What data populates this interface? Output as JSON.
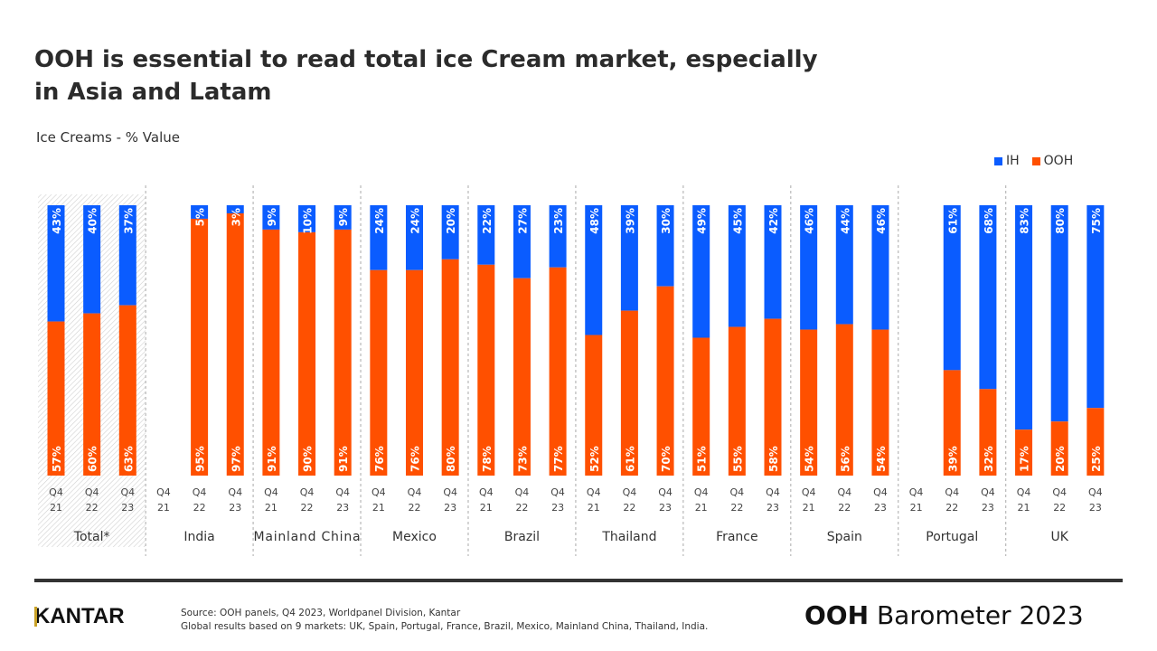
{
  "title": "OOH is essential to read total ice Cream market, especially in Asia and Latam",
  "subtitle": "Ice Creams - % Value",
  "legend": [
    {
      "name": "IH",
      "color": "#0a5cff"
    },
    {
      "name": "OOH",
      "color": "#ff5000"
    }
  ],
  "chart_data": {
    "type": "bar",
    "stacked": true,
    "ylim": [
      0,
      100
    ],
    "series": [
      {
        "name": "IH",
        "color": "#0a5cff"
      },
      {
        "name": "OOH",
        "color": "#ff5000"
      }
    ],
    "groups": [
      {
        "name": "Total*",
        "highlight": true,
        "bars": [
          {
            "period": [
              "Q4",
              "21"
            ],
            "OOH": 57,
            "IH": 43
          },
          {
            "period": [
              "Q4",
              "22"
            ],
            "OOH": 60,
            "IH": 40
          },
          {
            "period": [
              "Q4",
              "23"
            ],
            "OOH": 63,
            "IH": 37
          }
        ]
      },
      {
        "name": "India",
        "bars": [
          {
            "period": [
              "Q4",
              "21"
            ],
            "OOH": null,
            "IH": null
          },
          {
            "period": [
              "Q4",
              "22"
            ],
            "OOH": 95,
            "IH": 5
          },
          {
            "period": [
              "Q4",
              "23"
            ],
            "OOH": 97,
            "IH": 3
          }
        ]
      },
      {
        "name": "Mainland China",
        "bars": [
          {
            "period": [
              "Q4",
              "21"
            ],
            "OOH": 91,
            "IH": 9
          },
          {
            "period": [
              "Q4",
              "22"
            ],
            "OOH": 90,
            "IH": 10
          },
          {
            "period": [
              "Q4",
              "23"
            ],
            "OOH": 91,
            "IH": 9
          }
        ]
      },
      {
        "name": "Mexico",
        "bars": [
          {
            "period": [
              "Q4",
              "21"
            ],
            "OOH": 76,
            "IH": 24
          },
          {
            "period": [
              "Q4",
              "22"
            ],
            "OOH": 76,
            "IH": 24
          },
          {
            "period": [
              "Q4",
              "23"
            ],
            "OOH": 80,
            "IH": 20
          }
        ]
      },
      {
        "name": "Brazil",
        "bars": [
          {
            "period": [
              "Q4",
              "21"
            ],
            "OOH": 78,
            "IH": 22
          },
          {
            "period": [
              "Q4",
              "22"
            ],
            "OOH": 73,
            "IH": 27
          },
          {
            "period": [
              "Q4",
              "23"
            ],
            "OOH": 77,
            "IH": 23
          }
        ]
      },
      {
        "name": "Thailand",
        "bars": [
          {
            "period": [
              "Q4",
              "21"
            ],
            "OOH": 52,
            "IH": 48
          },
          {
            "period": [
              "Q4",
              "22"
            ],
            "OOH": 61,
            "IH": 39
          },
          {
            "period": [
              "Q4",
              "23"
            ],
            "OOH": 70,
            "IH": 30
          }
        ]
      },
      {
        "name": "France",
        "bars": [
          {
            "period": [
              "Q4",
              "21"
            ],
            "OOH": 51,
            "IH": 49
          },
          {
            "period": [
              "Q4",
              "22"
            ],
            "OOH": 55,
            "IH": 45
          },
          {
            "period": [
              "Q4",
              "23"
            ],
            "OOH": 58,
            "IH": 42
          }
        ]
      },
      {
        "name": "Spain",
        "bars": [
          {
            "period": [
              "Q4",
              "21"
            ],
            "OOH": 54,
            "IH": 46
          },
          {
            "period": [
              "Q4",
              "22"
            ],
            "OOH": 56,
            "IH": 44
          },
          {
            "period": [
              "Q4",
              "23"
            ],
            "OOH": 54,
            "IH": 46
          }
        ]
      },
      {
        "name": "Portugal",
        "bars": [
          {
            "period": [
              "Q4",
              "21"
            ],
            "OOH": null,
            "IH": null
          },
          {
            "period": [
              "Q4",
              "22"
            ],
            "OOH": 39,
            "IH": 61
          },
          {
            "period": [
              "Q4",
              "23"
            ],
            "OOH": 32,
            "IH": 68
          }
        ]
      },
      {
        "name": "UK",
        "bars": [
          {
            "period": [
              "Q4",
              "21"
            ],
            "OOH": 17,
            "IH": 83
          },
          {
            "period": [
              "Q4",
              "22"
            ],
            "OOH": 20,
            "IH": 80
          },
          {
            "period": [
              "Q4",
              "23"
            ],
            "OOH": 25,
            "IH": 75
          }
        ]
      }
    ]
  },
  "footer": {
    "logo": "KANTAR",
    "source_line1": "Source: OOH panels, Q4 2023, Worldpanel Division, Kantar",
    "source_line2": "Global results based on 9 markets: UK, Spain, Portugal, France, Brazil, Mexico, Mainland China, Thailand, India.",
    "brand_bold": "OOH",
    "brand_rest": " Barometer 2023"
  }
}
